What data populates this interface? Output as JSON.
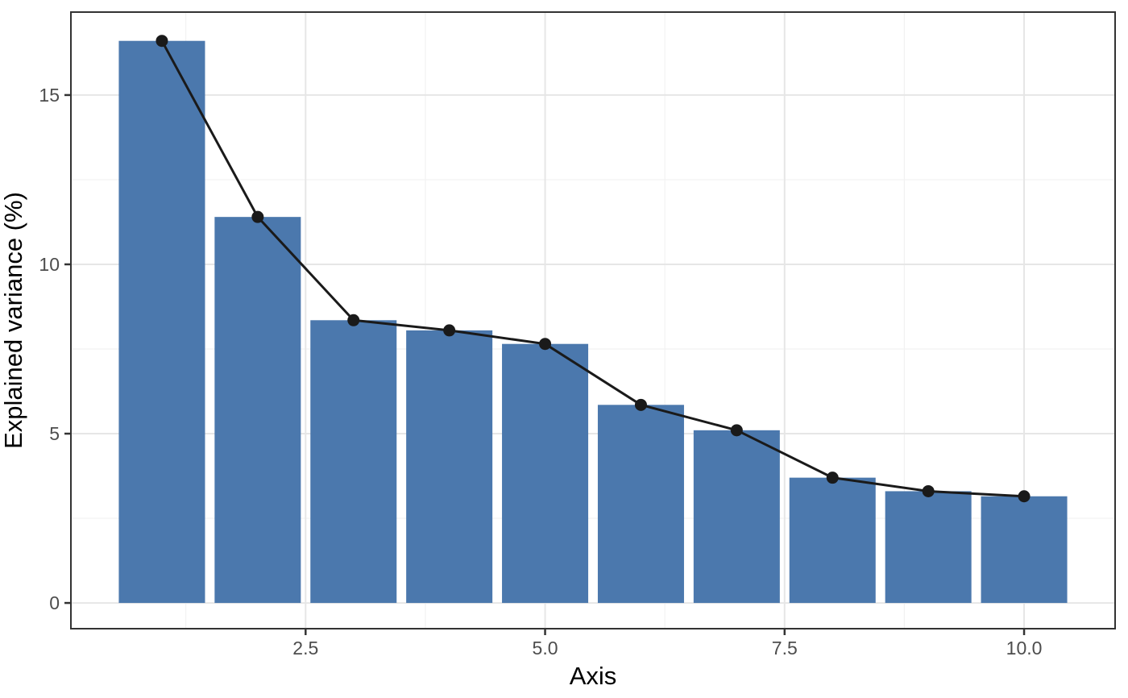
{
  "chart_data": {
    "type": "bar",
    "subtype": "scree-plot-with-line-overlay",
    "title": "",
    "xlabel": "Axis",
    "ylabel": "Explained variance (%)",
    "categories": [
      1,
      2,
      3,
      4,
      5,
      6,
      7,
      8,
      9,
      10
    ],
    "values": [
      16.6,
      11.4,
      8.35,
      8.05,
      7.65,
      5.85,
      5.1,
      3.7,
      3.3,
      3.15
    ],
    "series": [
      {
        "name": "explained-variance-bars",
        "type": "bar",
        "values": [
          16.6,
          11.4,
          8.35,
          8.05,
          7.65,
          5.85,
          5.1,
          3.7,
          3.3,
          3.15
        ]
      },
      {
        "name": "scree-line",
        "type": "line-with-points",
        "values": [
          16.6,
          11.4,
          8.35,
          8.05,
          7.65,
          5.85,
          5.1,
          3.7,
          3.3,
          3.15
        ]
      }
    ],
    "xlim": [
      0.05,
      10.95
    ],
    "ylim": [
      -0.76,
      17.45
    ],
    "x_ticks": {
      "values": [
        2.5,
        5.0,
        7.5,
        10.0
      ],
      "labels": [
        "2.5",
        "5.0",
        "7.5",
        "10.0"
      ]
    },
    "y_ticks": {
      "values": [
        0,
        5,
        10,
        15
      ],
      "labels": [
        "0",
        "5",
        "10",
        "15"
      ]
    },
    "x_minor_gridlines": [
      1.25,
      3.75,
      6.25,
      8.75
    ],
    "y_minor_gridlines": [
      2.5,
      7.5,
      12.5
    ],
    "grid": true,
    "legend": "none",
    "bar_width": 0.9,
    "point_radius": 7.5,
    "line_width": 3,
    "colors": {
      "bar_fill": "#4b78ad",
      "line": "#1a1a1a",
      "point": "#1a1a1a",
      "grid_major": "#e6e6e6",
      "grid_minor": "#f2f2f2",
      "panel_border": "#333333",
      "tick_mark": "#333333",
      "tick_label": "#4d4d4d",
      "axis_title": "#000000",
      "background": "#ffffff"
    }
  }
}
